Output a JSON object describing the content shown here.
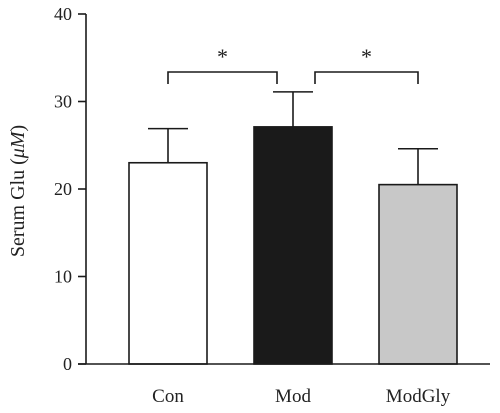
{
  "chart_data": {
    "type": "bar",
    "categories": [
      "Con",
      "Mod",
      "ModGly"
    ],
    "values": [
      23.0,
      27.1,
      20.5
    ],
    "errors": [
      3.9,
      4.0,
      4.1
    ],
    "colors": [
      "#ffffff",
      "#1a1a1a",
      "#c8c8c8"
    ],
    "edge_color": "#1a1a1a",
    "ylabel_prefix": "Serum Glu (",
    "ylabel_unit": "μM",
    "ylabel_suffix": ")",
    "ylim": [
      0,
      40
    ],
    "yticks": [
      "0",
      "10",
      "20",
      "30",
      "40"
    ],
    "grid": false,
    "significance": [
      {
        "from": "Con",
        "to": "Mod",
        "label": "*"
      },
      {
        "from": "Mod",
        "to": "ModGly",
        "label": "*"
      }
    ]
  }
}
